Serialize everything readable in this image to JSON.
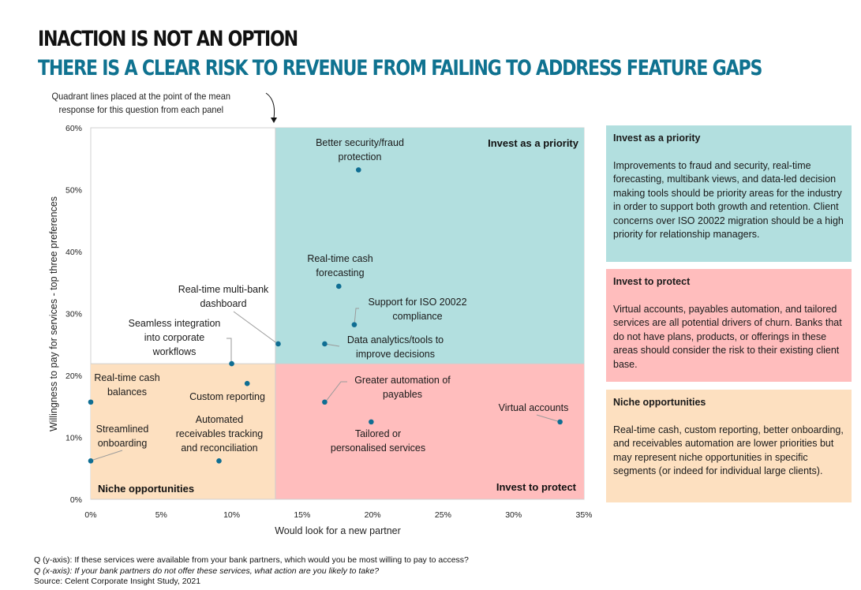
{
  "header": {
    "title": "INACTION IS NOT AN OPTION",
    "subtitle": "THERE IS A CLEAR RISK TO REVENUE FROM FAILING TO ADDRESS FEATURE GAPS"
  },
  "annotation": {
    "line1": "Quadrant lines placed at the point of the mean",
    "line2": "response for this question from each panel"
  },
  "colors": {
    "point": "#0f6e93",
    "invest_priority": "#b2dfdf",
    "invest_protect": "#ffbdbd",
    "niche": "#fde0c0",
    "title_accent": "#0f7290"
  },
  "chart_data": {
    "type": "scatter",
    "title": "",
    "xlabel": "Would look for a new partner",
    "ylabel": "Willingness to pay for services - top three preferences",
    "xlim": [
      0,
      35
    ],
    "ylim": [
      0,
      60
    ],
    "x_ticks": [
      "0%",
      "5%",
      "10%",
      "15%",
      "20%",
      "25%",
      "30%",
      "35%"
    ],
    "y_ticks": [
      "0%",
      "10%",
      "20%",
      "30%",
      "40%",
      "50%",
      "60%"
    ],
    "quadrant_lines": {
      "x": 13.1,
      "y": 21.9
    },
    "quadrants": [
      {
        "name": "Invest as a priority",
        "position": "top-right"
      },
      {
        "name": "Invest to protect",
        "position": "bottom-right"
      },
      {
        "name": "Niche opportunities",
        "position": "bottom-left"
      }
    ],
    "points": [
      {
        "label": "Better security/fraud protection",
        "x": 19.0,
        "y": 53.2
      },
      {
        "label": "Real-time cash forecasting",
        "x": 17.6,
        "y": 34.4
      },
      {
        "label": "Support for ISO 20022 compliance",
        "x": 18.7,
        "y": 28.2
      },
      {
        "label": "Data analytics/tools to improve decisions",
        "x": 16.6,
        "y": 25.1
      },
      {
        "label": "Real-time multi-bank dashboard",
        "x": 13.3,
        "y": 25.1
      },
      {
        "label": "Seamless integration into corporate workflows",
        "x": 10.0,
        "y": 21.9
      },
      {
        "label": "Custom reporting",
        "x": 11.1,
        "y": 18.7
      },
      {
        "label": "Real-time cash balances",
        "x": 0.0,
        "y": 15.7
      },
      {
        "label": "Streamlined onboarding",
        "x": 0.0,
        "y": 6.2
      },
      {
        "label": "Automated receivables tracking and reconciliation",
        "x": 9.1,
        "y": 6.2
      },
      {
        "label": "Greater automation of payables",
        "x": 16.6,
        "y": 15.7
      },
      {
        "label": "Tailored or personalised services",
        "x": 19.9,
        "y": 12.5
      },
      {
        "label": "Virtual accounts",
        "x": 33.3,
        "y": 12.5
      }
    ]
  },
  "panels": [
    {
      "heading": "Invest as a priority",
      "body": "Improvements to fraud and security, real-time forecasting, multibank views, and data-led decision making tools should be priority areas for the industry in order to support both growth and retention. Client concerns over ISO 20022 migration should be a high priority for relationship managers."
    },
    {
      "heading": "Invest to protect",
      "body": "Virtual accounts, payables automation, and tailored services are all potential drivers of churn. Banks that do not have plans, products, or offerings in these areas should consider the risk to their existing client base."
    },
    {
      "heading": "Niche opportunities",
      "body": "Real-time cash, custom reporting, better onboarding, and receivables automation are lower priorities but may represent niche opportunities in specific segments (or indeed for individual large clients)."
    }
  ],
  "footer": {
    "q_y": "Q (y-axis): If these services were available from your bank partners, which would you be most willing to pay to access?",
    "q_x": "Q (x-axis): If your bank partners do not offer these services, what action are you likely to take?",
    "source": "Source: Celent Corporate Insight Study, 2021"
  }
}
